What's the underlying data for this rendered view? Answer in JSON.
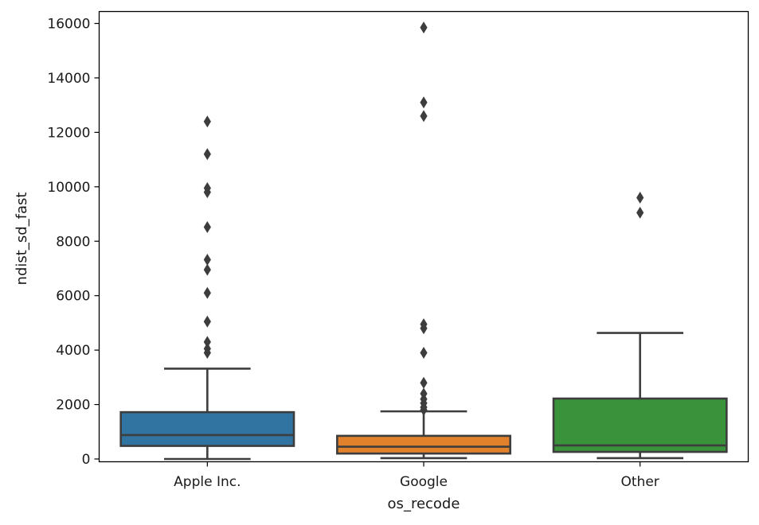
{
  "chart_data": {
    "type": "box",
    "xlabel": "os_recode",
    "ylabel": "ndist_sd_fast",
    "ylim": [
      -100,
      16350
    ],
    "yticks": [
      0,
      2000,
      4000,
      6000,
      8000,
      10000,
      12000,
      14000,
      16000
    ],
    "categories": [
      "Apple Inc.",
      "Google",
      "Other"
    ],
    "colors": [
      "#3274a1",
      "#e1812c",
      "#3a923a"
    ],
    "edge_color": "#3d3d3d",
    "boxes": [
      {
        "category": "Apple Inc.",
        "whisker_low": 0,
        "q1": 480,
        "median": 880,
        "q3": 1720,
        "whisker_high": 3320,
        "outliers": [
          3900,
          4050,
          4300,
          5050,
          6100,
          6950,
          7320,
          8520,
          9800,
          9950,
          11200,
          12400
        ]
      },
      {
        "category": "Google",
        "whisker_low": 30,
        "q1": 200,
        "median": 450,
        "q3": 850,
        "whisker_high": 1750,
        "outliers": [
          1800,
          1900,
          2050,
          2200,
          2400,
          2800,
          3900,
          4800,
          4950,
          12600,
          13100,
          15850
        ]
      },
      {
        "category": "Other",
        "whisker_low": 30,
        "q1": 260,
        "median": 500,
        "q3": 2220,
        "whisker_high": 4630,
        "outliers": [
          9050,
          9600
        ]
      }
    ]
  }
}
